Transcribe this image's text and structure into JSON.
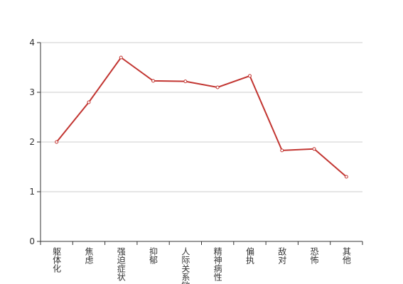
{
  "chart_data": {
    "type": "line",
    "categories": [
      "躯体化",
      "焦虑",
      "强迫症状",
      "抑郁",
      "人际关系敏感",
      "精神病性",
      "偏执",
      "敌对",
      "恐怖",
      "其他"
    ],
    "values": [
      2.0,
      2.8,
      3.7,
      3.23,
      3.22,
      3.1,
      3.33,
      1.83,
      1.86,
      1.3
    ],
    "color": "#c23531",
    "ylim": [
      0,
      4
    ],
    "yticks": [
      0,
      1,
      2,
      3,
      4
    ],
    "grid": true
  }
}
